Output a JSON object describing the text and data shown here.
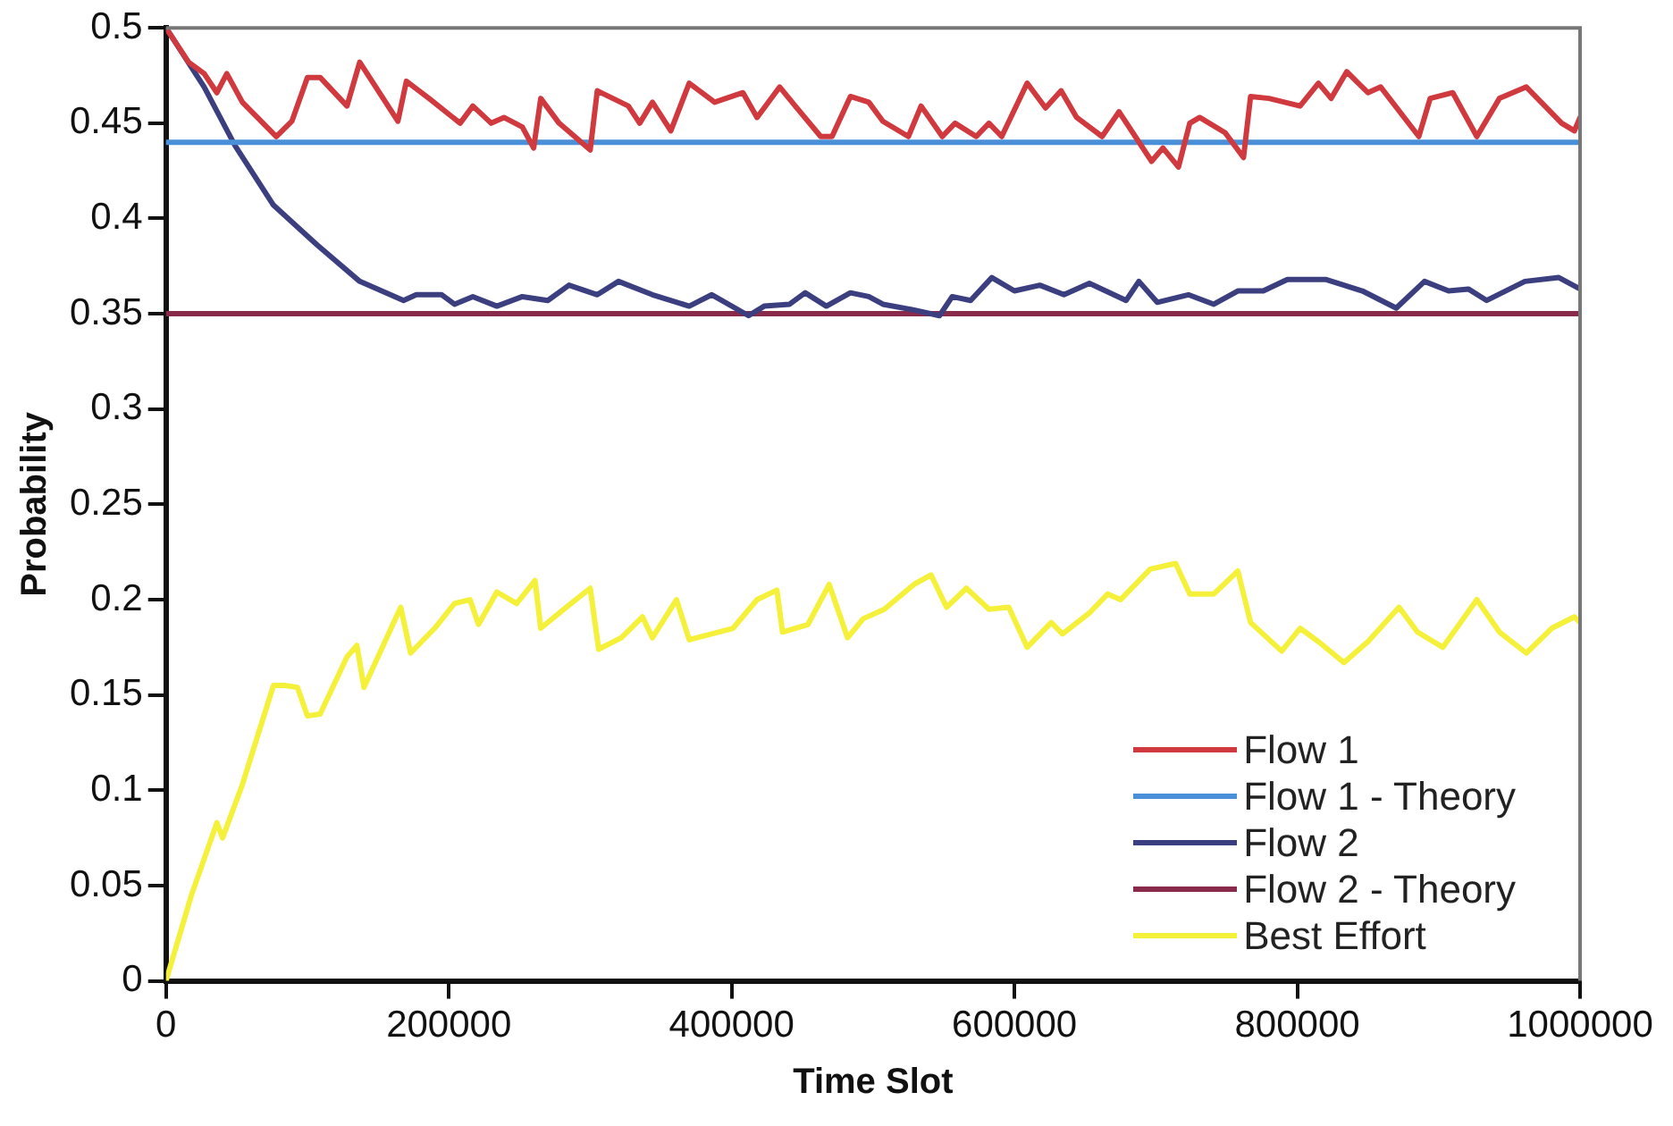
{
  "chart_data": {
    "type": "line",
    "xlabel": "Time Slot",
    "ylabel": "Probability",
    "xlim": [
      0,
      1000000
    ],
    "xticks": [
      0,
      200000,
      400000,
      600000,
      800000,
      1000000
    ],
    "ylim": [
      0,
      0.5
    ],
    "yticks": [
      0,
      0.05,
      0.1,
      0.15,
      0.2,
      0.25,
      0.3,
      0.35,
      0.4,
      0.45,
      0.5
    ],
    "grid": false,
    "legend": "bottom right",
    "marker": "none",
    "line_style": "solid",
    "series": [
      {
        "name": "Flow 1",
        "color": "#d03a3f",
        "x": [
          0,
          16000,
          27000,
          36000,
          43000,
          54000,
          78000,
          89000,
          100000,
          109000,
          128000,
          137000,
          164000,
          170000,
          186000,
          208000,
          217000,
          230000,
          239000,
          252000,
          260000,
          265000,
          278000,
          300000,
          305000,
          327000,
          335000,
          344000,
          357000,
          370000,
          388000,
          408000,
          418000,
          434000,
          445000,
          463000,
          471000,
          484000,
          497000,
          507000,
          525000,
          534000,
          549000,
          558000,
          573000,
          582000,
          591000,
          609000,
          622000,
          633000,
          644000,
          662000,
          674000,
          697000,
          705000,
          716000,
          724000,
          731000,
          749000,
          762000,
          767000,
          780000,
          802000,
          815000,
          824000,
          835000,
          850000,
          859000,
          886000,
          894000,
          910000,
          927000,
          943000,
          962000,
          987000,
          996000,
          1000000
        ],
        "values": [
          0.5,
          0.482,
          0.476,
          0.466,
          0.476,
          0.461,
          0.443,
          0.451,
          0.474,
          0.474,
          0.459,
          0.482,
          0.451,
          0.472,
          0.463,
          0.45,
          0.459,
          0.45,
          0.453,
          0.448,
          0.437,
          0.463,
          0.45,
          0.436,
          0.467,
          0.459,
          0.45,
          0.461,
          0.446,
          0.471,
          0.461,
          0.466,
          0.453,
          0.469,
          0.459,
          0.443,
          0.443,
          0.464,
          0.461,
          0.451,
          0.443,
          0.459,
          0.443,
          0.45,
          0.443,
          0.45,
          0.443,
          0.471,
          0.458,
          0.467,
          0.453,
          0.443,
          0.456,
          0.43,
          0.437,
          0.427,
          0.45,
          0.453,
          0.445,
          0.432,
          0.464,
          0.463,
          0.459,
          0.471,
          0.463,
          0.477,
          0.466,
          0.469,
          0.443,
          0.463,
          0.466,
          0.443,
          0.463,
          0.469,
          0.45,
          0.446,
          0.453
        ]
      },
      {
        "name": "Flow 1 - Theory",
        "color": "#4a90d9",
        "x": [
          0,
          1000000
        ],
        "values": [
          0.44,
          0.44
        ]
      },
      {
        "name": "Flow 2",
        "color": "#3b3f80",
        "x": [
          0,
          27000,
          49000,
          76000,
          107000,
          137000,
          168000,
          177000,
          195000,
          204000,
          217000,
          234000,
          252000,
          270000,
          285000,
          305000,
          320000,
          344000,
          370000,
          386000,
          412000,
          423000,
          441000,
          452000,
          467000,
          484000,
          497000,
          507000,
          529000,
          547000,
          556000,
          569000,
          584000,
          600000,
          618000,
          635000,
          653000,
          679000,
          688000,
          701000,
          723000,
          741000,
          758000,
          776000,
          793000,
          820000,
          846000,
          870000,
          890000,
          907000,
          921000,
          934000,
          961000,
          985000,
          1000000
        ],
        "values": [
          0.5,
          0.469,
          0.438,
          0.407,
          0.386,
          0.367,
          0.357,
          0.36,
          0.36,
          0.355,
          0.359,
          0.354,
          0.359,
          0.357,
          0.365,
          0.36,
          0.367,
          0.36,
          0.354,
          0.36,
          0.349,
          0.354,
          0.355,
          0.361,
          0.354,
          0.361,
          0.359,
          0.355,
          0.352,
          0.349,
          0.359,
          0.357,
          0.369,
          0.362,
          0.365,
          0.36,
          0.366,
          0.357,
          0.367,
          0.356,
          0.36,
          0.355,
          0.362,
          0.362,
          0.368,
          0.368,
          0.362,
          0.353,
          0.367,
          0.362,
          0.363,
          0.357,
          0.367,
          0.369,
          0.363
        ]
      },
      {
        "name": "Flow 2 - Theory",
        "color": "#8a2a4a",
        "x": [
          0,
          1000000
        ],
        "values": [
          0.35,
          0.35
        ]
      },
      {
        "name": "Best Effort",
        "color": "#f5f03a",
        "x": [
          0,
          18000,
          36000,
          40000,
          54000,
          76000,
          84000,
          93000,
          100000,
          109000,
          128000,
          135000,
          140000,
          166000,
          173000,
          190000,
          204000,
          215000,
          221000,
          234000,
          248000,
          261000,
          265000,
          283000,
          300000,
          306000,
          322000,
          337000,
          344000,
          361000,
          370000,
          401000,
          418000,
          432000,
          436000,
          454000,
          469000,
          482000,
          493000,
          508000,
          529000,
          541000,
          552000,
          566000,
          582000,
          596000,
          609000,
          626000,
          634000,
          653000,
          666000,
          675000,
          696000,
          714000,
          724000,
          741000,
          758000,
          767000,
          789000,
          802000,
          815000,
          833000,
          850000,
          872000,
          885000,
          903000,
          927000,
          943000,
          962000,
          980000,
          996000,
          1000000
        ],
        "values": [
          0,
          0.045,
          0.083,
          0.075,
          0.103,
          0.155,
          0.155,
          0.154,
          0.139,
          0.14,
          0.17,
          0.176,
          0.154,
          0.196,
          0.172,
          0.185,
          0.198,
          0.2,
          0.187,
          0.204,
          0.198,
          0.21,
          0.185,
          0.196,
          0.206,
          0.174,
          0.18,
          0.191,
          0.18,
          0.2,
          0.179,
          0.185,
          0.2,
          0.205,
          0.183,
          0.187,
          0.208,
          0.18,
          0.19,
          0.195,
          0.208,
          0.213,
          0.196,
          0.206,
          0.195,
          0.196,
          0.175,
          0.188,
          0.182,
          0.193,
          0.203,
          0.2,
          0.216,
          0.219,
          0.203,
          0.203,
          0.215,
          0.188,
          0.173,
          0.185,
          0.178,
          0.167,
          0.178,
          0.196,
          0.183,
          0.175,
          0.2,
          0.183,
          0.172,
          0.185,
          0.191,
          0.188
        ]
      }
    ]
  }
}
